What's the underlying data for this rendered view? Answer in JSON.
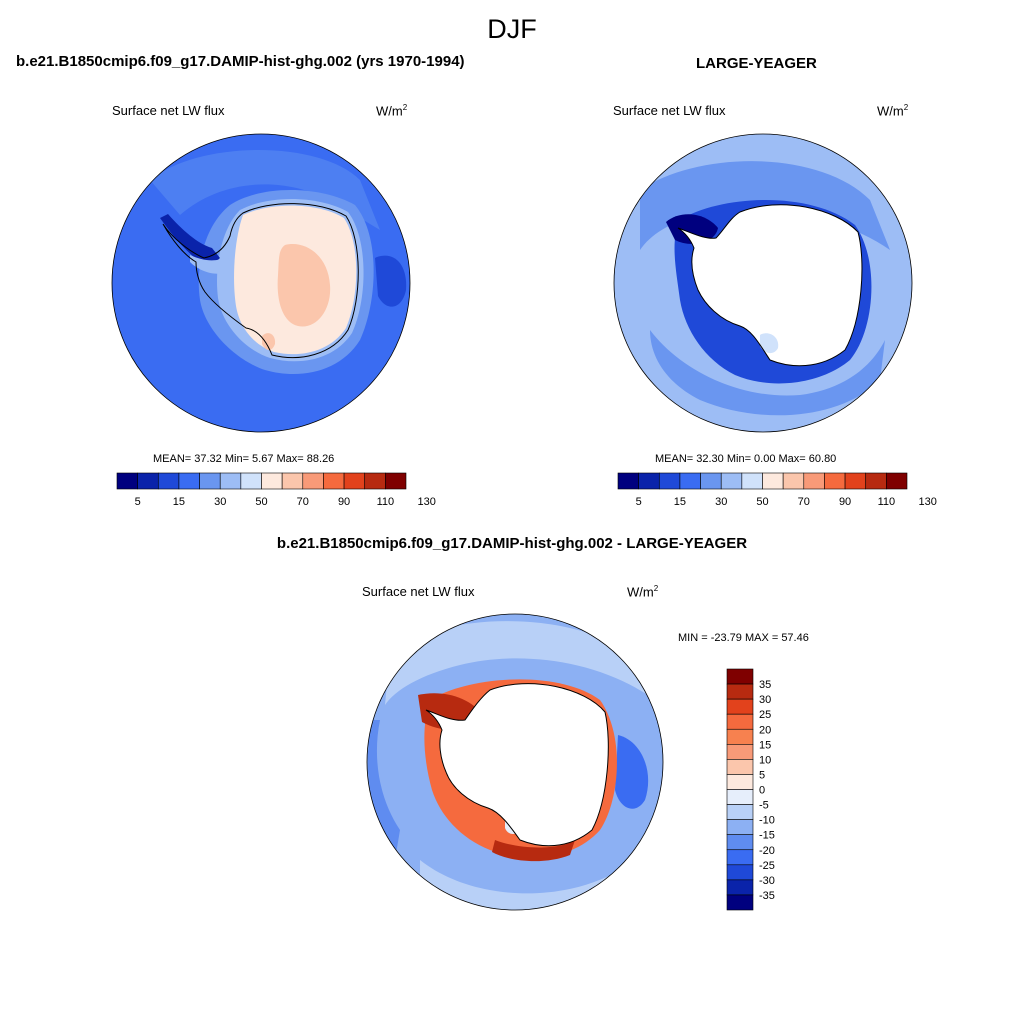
{
  "figure": {
    "season": "DJF",
    "variable": "Surface net LW flux",
    "units_base": "W/m",
    "units_exp": "2"
  },
  "panel1": {
    "title": "b.e21.B1850cmip6.f09_g17.DAMIP-hist-ghg.002 (yrs 1970-1994)",
    "stats": "MEAN=  37.32  Min=   5.67  Max=  88.26",
    "mean": 37.32,
    "min": 5.67,
    "max": 88.26
  },
  "panel2": {
    "title": "LARGE-YEAGER",
    "stats": "MEAN=  32.30  Min=   0.00  Max=  60.80",
    "mean": 32.3,
    "min": 0.0,
    "max": 60.8
  },
  "panel3": {
    "title": "b.e21.B1850cmip6.f09_g17.DAMIP-hist-ghg.002 - LARGE-YEAGER",
    "stats": "MIN = -23.79 MAX =  57.46",
    "min": -23.79,
    "max": 57.46
  },
  "colorbar_abs": {
    "labels": [
      "5",
      "15",
      "30",
      "50",
      "70",
      "90",
      "110",
      "130"
    ],
    "colors": [
      "#00007f",
      "#0a23aa",
      "#1f49d8",
      "#3a6cf2",
      "#6a96f0",
      "#9dbdf5",
      "#d0e2fb",
      "#fde9de",
      "#fbc6ac",
      "#f89a78",
      "#f56a3e",
      "#e2421c",
      "#b72a10",
      "#7f0000"
    ]
  },
  "colorbar_diff": {
    "labels": [
      "35",
      "30",
      "25",
      "20",
      "15",
      "10",
      "5",
      "0",
      "-5",
      "-10",
      "-15",
      "-20",
      "-25",
      "-30",
      "-35"
    ],
    "colors": [
      "#7f0000",
      "#b72a10",
      "#e2421c",
      "#f56a3e",
      "#f7814f",
      "#f89a78",
      "#fbc6ac",
      "#fde9de",
      "#e6eefb",
      "#b8d0f7",
      "#8cb0f3",
      "#5f8cf0",
      "#3a6cf2",
      "#1f49d8",
      "#0a23aa",
      "#00007f"
    ]
  }
}
